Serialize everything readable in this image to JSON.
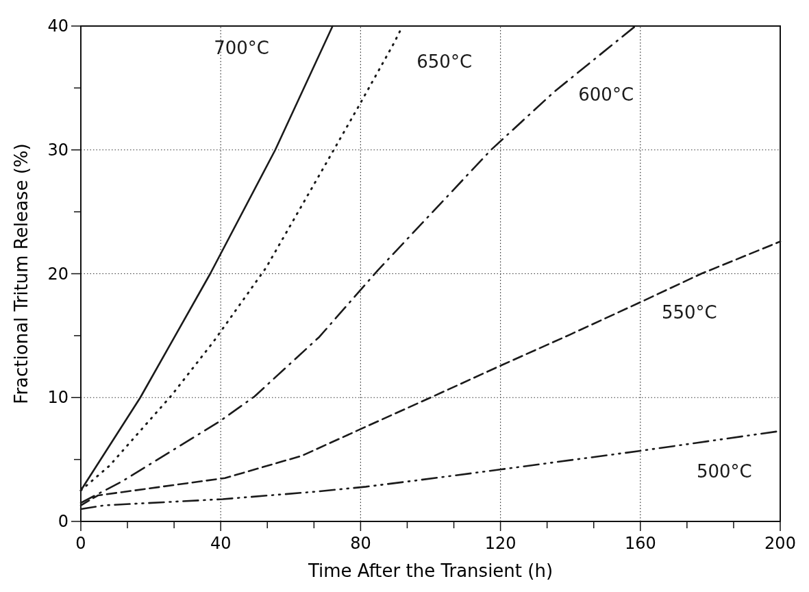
{
  "chart_data": {
    "type": "line",
    "xlabel": "Time After the Transient (h)",
    "ylabel": "Fractional Tritum Release (%)",
    "xlim": [
      0,
      200
    ],
    "ylim": [
      0,
      40
    ],
    "xticks": [
      0,
      {
        "value": 13.33,
        "label": null
      },
      {
        "value": 26.67,
        "label": null
      },
      40,
      {
        "value": 53.33,
        "label": null
      },
      {
        "value": 66.67,
        "label": null
      },
      80,
      {
        "value": 93.33,
        "label": null
      },
      {
        "value": 106.67,
        "label": null
      },
      120,
      {
        "value": 133.33,
        "label": null
      },
      {
        "value": 146.67,
        "label": null
      },
      160,
      {
        "value": 173.33,
        "label": null
      },
      {
        "value": 186.67,
        "label": null
      },
      200
    ],
    "yticks": [
      0,
      {
        "value": 5,
        "label": null
      },
      10,
      {
        "value": 15,
        "label": null
      },
      20,
      {
        "value": 25,
        "label": null
      },
      30,
      {
        "value": 35,
        "label": null
      },
      40
    ],
    "grid": true,
    "marker": "none",
    "series": [
      {
        "name": "700°C",
        "color": "#1a1a1a",
        "line_style": "solid",
        "x": [
          0,
          17,
          37,
          55.6,
          72
        ],
        "values": [
          2.5,
          10,
          20,
          30,
          40
        ]
      },
      {
        "name": "650°C",
        "color": "#1a1a1a",
        "line_style": "dotted",
        "x": [
          0,
          8.2,
          26,
          37.9,
          53,
          69.7,
          79.4,
          89.5,
          92
        ],
        "values": [
          2.5,
          4.5,
          10.2,
          14.5,
          20.5,
          28.7,
          33.5,
          38.6,
          40
        ]
      },
      {
        "name": "600°C",
        "color": "#1a1a1a",
        "line_style": "dashdot",
        "x": [
          0,
          11.6,
          39.8,
          49.7,
          68.2,
          85,
          117.3,
          135.4,
          158.6
        ],
        "values": [
          1.5,
          3.2,
          8.1,
          10.1,
          14.9,
          20.3,
          30,
          34.7,
          40
        ]
      },
      {
        "name": "550°C",
        "color": "#1a1a1a",
        "line_style": "dashed",
        "x": [
          0,
          4.9,
          41.2,
          63.2,
          82.7,
          100,
          120.2,
          140,
          160,
          177.4,
          200
        ],
        "values": [
          1.3,
          2.1,
          3.5,
          5.3,
          7.8,
          10,
          12.6,
          15.1,
          17.7,
          20,
          22.6
        ]
      },
      {
        "name": "500°C",
        "color": "#1a1a1a",
        "line_style": "dashdotdot",
        "x": [
          0,
          6.8,
          40.6,
          67,
          81.5,
          95.7,
          120.2,
          160,
          200
        ],
        "values": [
          1,
          1.3,
          1.8,
          2.4,
          2.8,
          3.3,
          4.2,
          5.7,
          7.3
        ]
      }
    ]
  }
}
